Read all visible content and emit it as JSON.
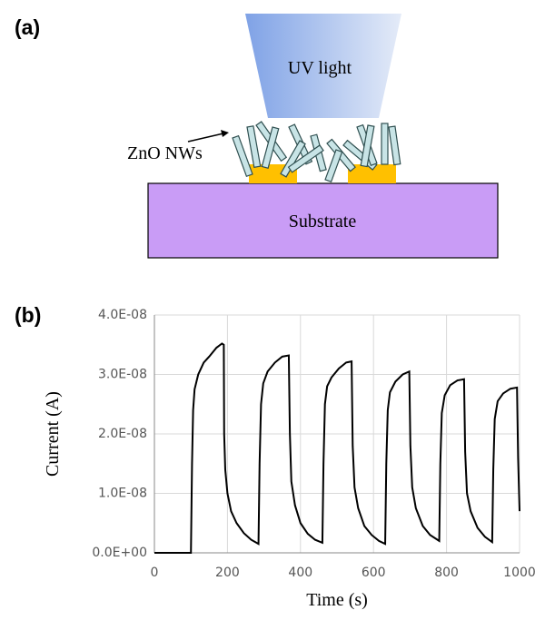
{
  "diagram": {
    "label": "(a)",
    "light": "UV light",
    "nanowires": "ZnO NWs",
    "substrate": "Substrate"
  },
  "chart_data": {
    "type": "line",
    "panel_label": "(b)",
    "x_label": "Time (s)",
    "y_label": "Current (A)",
    "xlim": [
      0,
      1000
    ],
    "xticks": [
      0,
      200,
      400,
      600,
      800,
      1000
    ],
    "ylim": [
      0,
      4e-08
    ],
    "yticks": [
      {
        "value": 0,
        "label": "0.0E+00"
      },
      {
        "value": 1e-08,
        "label": "1.0E-08"
      },
      {
        "value": 2e-08,
        "label": "2.0E-08"
      },
      {
        "value": 3e-08,
        "label": "3.0E-08"
      },
      {
        "value": 4e-08,
        "label": "4.0E-08"
      }
    ],
    "grid": true,
    "series": [
      {
        "color": "#000000",
        "x": [
          0,
          100,
          103,
          106,
          110,
          120,
          135,
          150,
          170,
          185,
          190,
          191,
          194,
          200,
          210,
          225,
          245,
          265,
          285,
          288,
          292,
          298,
          310,
          330,
          350,
          368,
          371,
          375,
          385,
          400,
          420,
          440,
          460,
          463,
          467,
          473,
          485,
          505,
          525,
          540,
          543,
          548,
          558,
          575,
          595,
          615,
          632,
          635,
          639,
          645,
          660,
          680,
          698,
          701,
          706,
          716,
          735,
          755,
          780,
          783,
          787,
          795,
          810,
          830,
          848,
          851,
          856,
          866,
          885,
          905,
          925,
          928,
          932,
          940,
          955,
          975,
          993,
          996,
          1000
        ],
        "values": [
          0,
          0,
          1.5e-08,
          2.4e-08,
          2.75e-08,
          3e-08,
          3.2e-08,
          3.3e-08,
          3.45e-08,
          3.52e-08,
          3.5e-08,
          2e-08,
          1.4e-08,
          1e-08,
          7e-09,
          5e-09,
          3.3e-09,
          2.2e-09,
          1.5e-09,
          1.5e-08,
          2.5e-08,
          2.85e-08,
          3.05e-08,
          3.2e-08,
          3.3e-08,
          3.32e-08,
          2e-08,
          1.2e-08,
          8e-09,
          5e-09,
          3.2e-09,
          2.2e-09,
          1.7e-09,
          1.5e-08,
          2.5e-08,
          2.8e-08,
          2.95e-08,
          3.1e-08,
          3.2e-08,
          3.22e-08,
          1.8e-08,
          1.1e-08,
          7.5e-09,
          4.5e-09,
          3e-09,
          2e-09,
          1.5e-09,
          1.5e-08,
          2.4e-08,
          2.7e-08,
          2.88e-08,
          3e-08,
          3.05e-08,
          1.8e-08,
          1.1e-08,
          7.5e-09,
          4.5e-09,
          3e-09,
          2e-09,
          1.5e-08,
          2.35e-08,
          2.65e-08,
          2.82e-08,
          2.9e-08,
          2.92e-08,
          1.7e-08,
          1e-08,
          7e-09,
          4.2e-09,
          2.7e-09,
          1.8e-09,
          1.4e-08,
          2.25e-08,
          2.55e-08,
          2.68e-08,
          2.76e-08,
          2.78e-08,
          1.6e-08,
          7e-09
        ]
      }
    ]
  }
}
